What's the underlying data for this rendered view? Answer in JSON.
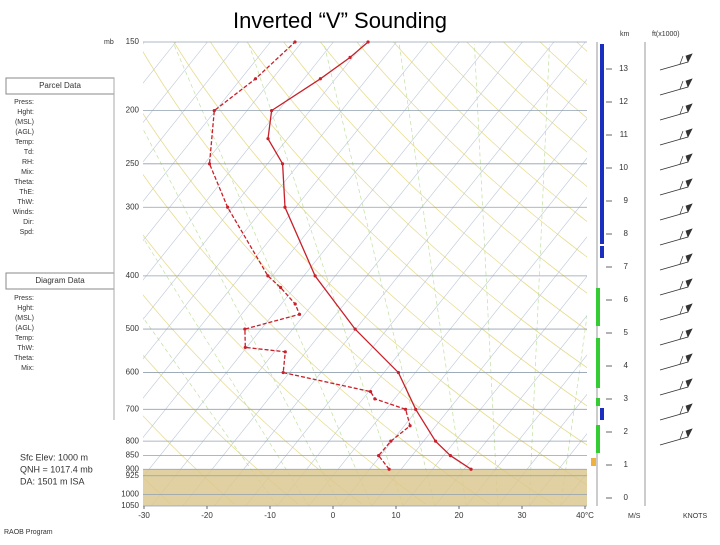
{
  "title": "Inverted “V” Sounding",
  "pressure_unit": "mb",
  "pressure_ticks": [
    150,
    200,
    250,
    300,
    400,
    500,
    600,
    700,
    800,
    850,
    900,
    925,
    1000,
    1050
  ],
  "temp_ticks": [
    -30,
    -20,
    -10,
    0,
    10,
    20,
    30,
    {
      "value": 40,
      "label": "40°C"
    }
  ],
  "km_unit": "km",
  "ft_unit": "ft(x1000)",
  "km_ticks": [
    0,
    1,
    2,
    3,
    4,
    5,
    6,
    7,
    8,
    9,
    10,
    11,
    12,
    13
  ],
  "ms_unit": "M/S",
  "knots_unit": "KNOTS",
  "parcel_panel": {
    "title": "Parcel Data",
    "rows": [
      "Press:",
      "Hght:",
      "(MSL)",
      "(AGL)",
      "Temp:",
      "Td:",
      "RH:",
      "Mix:",
      "Theta:",
      "ThE:",
      "ThW:",
      "Winds:",
      "Dir:",
      "Spd:"
    ]
  },
  "diagram_panel": {
    "title": "Diagram Data",
    "rows": [
      "Press:",
      "Hght:",
      "(MSL)",
      "(AGL)",
      "Temp:",
      "ThW:",
      "Theta:",
      "Mix:"
    ]
  },
  "surface": {
    "elevation": "Sfc Elev: 1000 m",
    "qnh": "QNH = 1017.4 mb",
    "da": "DA: 1501 m ISA"
  },
  "footer": "RAOB Program",
  "temperature": {
    "color": "#c8202a",
    "pressure": [
      900,
      850,
      800,
      700,
      600,
      500,
      400,
      300,
      250,
      225,
      200,
      175,
      160,
      150
    ],
    "values": [
      16.1,
      11.1,
      6.9,
      -0.3,
      -7.7,
      -20.1,
      -33.2,
      -46.7,
      -52.6,
      -58.1,
      -61.1,
      -57.4,
      -55.4,
      -54.5
    ]
  },
  "dewpoint": {
    "color": "#c8202a",
    "pressure": [
      900,
      850,
      800,
      750,
      700,
      670,
      650,
      600,
      550,
      540,
      500,
      470,
      450,
      420,
      400,
      300,
      250,
      200,
      175,
      150
    ],
    "values": [
      3.1,
      -0.3,
      -0.2,
      0.9,
      -1.9,
      -8.1,
      -9.7,
      -26,
      -28.3,
      -35.2,
      -37.6,
      -30.8,
      -32.8,
      -37.2,
      -40.7,
      -55.8,
      -64.2,
      -70.2,
      -67.7,
      -66.1
    ]
  }
}
